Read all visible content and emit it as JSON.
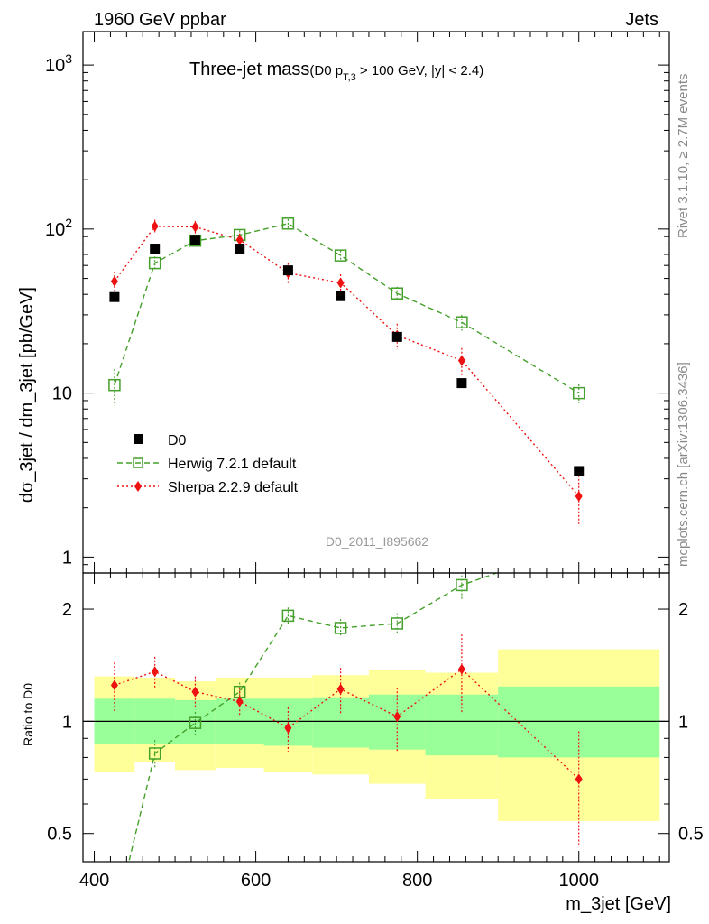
{
  "header": {
    "left": "1960 GeV ppbar",
    "right": "Jets",
    "side_top": "Rivet 3.1.10, ≥ 2.7M events",
    "side_bottom": "mcplots.cern.ch [arXiv:1306.3436]"
  },
  "chart_data": {
    "type": "scatter",
    "title": "Three-jet mass",
    "subtitle_pre": "(D0 p",
    "subtitle_sub": "T,3",
    "subtitle_post": " > 100 GeV, |y| < 2.4)",
    "watermark": "D0_2011_I895662",
    "xlabel": "m_3jet [GeV]",
    "ylabel": "dσ_3jet / dm_3jet [pb/GeV]",
    "ratio_ylabel": "Ratio to D0",
    "xlim": [
      386,
      1112
    ],
    "ylim": [
      0.8,
      1600
    ],
    "yscale": "log",
    "ratio_ylim": [
      0.42,
      2.5
    ],
    "ratio_yscale": "log",
    "x_ticks": [
      "400",
      "600",
      "800",
      "1000"
    ],
    "y_ticks": [
      "1",
      "10",
      "10^2",
      "10^3"
    ],
    "ratio_ticks": [
      "0.5",
      "1",
      "2"
    ],
    "legend": [
      "D0",
      "Herwig 7.2.1 default",
      "Sherpa 2.2.9 default"
    ],
    "bin_edges": [
      400,
      450,
      500,
      550,
      610,
      670,
      740,
      810,
      900,
      1100
    ],
    "x": [
      425,
      475,
      525,
      580,
      640,
      705,
      775,
      855,
      1000
    ],
    "series": [
      {
        "name": "D0",
        "color": "#000000",
        "values": [
          38.5,
          76,
          86,
          76,
          56,
          39,
          22,
          11.5,
          3.35
        ]
      },
      {
        "name": "Herwig 7.2.1 default",
        "color": "#44a02a",
        "values": [
          11.2,
          62,
          85,
          92,
          108,
          69,
          40.5,
          27,
          10
        ],
        "errors": [
          2.8,
          6,
          6,
          6,
          7,
          5,
          4,
          3,
          1.3
        ],
        "ratio": [
          0.29,
          0.82,
          0.99,
          1.2,
          1.92,
          1.78,
          1.83,
          2.32,
          2.98
        ],
        "ratio_err": [
          0.07,
          0.07,
          0.07,
          0.07,
          0.1,
          0.1,
          0.12,
          0.2,
          0.3
        ]
      },
      {
        "name": "Sherpa 2.2.9 default",
        "color": "#ee1111",
        "values": [
          48,
          104,
          103,
          86,
          54,
          47,
          22.5,
          15.8,
          2.35
        ],
        "errors": [
          7,
          10,
          9,
          8,
          8,
          6,
          4,
          3,
          0.8
        ],
        "ratio": [
          1.25,
          1.36,
          1.2,
          1.13,
          0.96,
          1.22,
          1.03,
          1.38,
          0.7
        ],
        "ratio_err": [
          0.19,
          0.13,
          0.12,
          0.1,
          0.13,
          0.17,
          0.2,
          0.33,
          0.24
        ]
      }
    ],
    "band_yellow": [
      [
        0.73,
        1.32
      ],
      [
        0.78,
        1.31
      ],
      [
        0.74,
        1.28
      ],
      [
        0.75,
        1.31
      ],
      [
        0.73,
        1.31
      ],
      [
        0.72,
        1.33
      ],
      [
        0.68,
        1.37
      ],
      [
        0.62,
        1.35
      ],
      [
        0.54,
        1.56
      ]
    ],
    "band_green": [
      [
        0.87,
        1.15
      ],
      [
        0.87,
        1.15
      ],
      [
        0.87,
        1.14
      ],
      [
        0.87,
        1.15
      ],
      [
        0.86,
        1.15
      ],
      [
        0.85,
        1.16
      ],
      [
        0.84,
        1.18
      ],
      [
        0.81,
        1.18
      ],
      [
        0.8,
        1.24
      ]
    ],
    "colors": {
      "yellow": "#ffff99",
      "green": "#99ff99"
    }
  }
}
